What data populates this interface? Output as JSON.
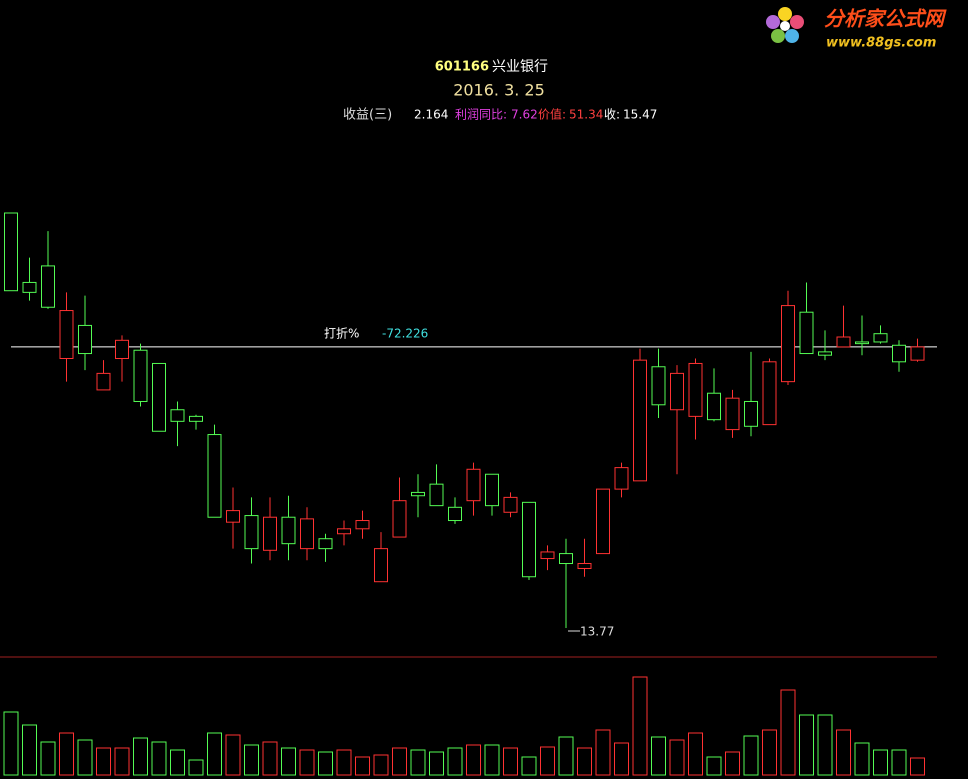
{
  "chart_data": {
    "type": "candlestick",
    "code": "601166",
    "name": "兴业银行",
    "date": "2016. 3. 25",
    "logo": {
      "title": "分析家公式网",
      "url": "www.88gs.com"
    },
    "info": {
      "eps_label": "收益(三)",
      "eps": 2.164,
      "profit_label": "利润同比:",
      "profit": 7.62,
      "value_label": "价值:",
      "value": 51.34,
      "close_label": "收:"
    },
    "discount": {
      "label": "打折%",
      "value": -72.226
    },
    "up_color": "#ff3232",
    "down_color": "#54fc54",
    "open": [
      16.28,
      15.86,
      15.96,
      15.4,
      15.6,
      15.21,
      15.4,
      15.45,
      15.37,
      15.09,
      15.05,
      14.94,
      14.41,
      14.45,
      14.24,
      14.44,
      14.25,
      14.31,
      14.34,
      14.37,
      14.05,
      14.32,
      14.59,
      14.64,
      14.5,
      14.54,
      14.7,
      14.47,
      14.53,
      14.19,
      14.22,
      14.13,
      14.22,
      14.61,
      14.66,
      15.35,
      15.09,
      15.05,
      15.19,
      14.97,
      15.14,
      15.0,
      15.26,
      15.68,
      15.44,
      15.47,
      15.5,
      15.55,
      15.48,
      15.39
    ],
    "high": [
      16.28,
      16.01,
      16.17,
      15.8,
      15.78,
      15.39,
      15.54,
      15.49,
      15.37,
      15.14,
      15.06,
      15.0,
      14.62,
      14.56,
      14.56,
      14.57,
      14.5,
      14.34,
      14.42,
      14.48,
      14.35,
      14.68,
      14.7,
      14.76,
      14.56,
      14.77,
      14.7,
      14.59,
      14.53,
      14.27,
      14.31,
      14.31,
      14.61,
      14.77,
      15.46,
      15.46,
      15.36,
      15.4,
      15.34,
      15.21,
      15.44,
      15.4,
      15.81,
      15.86,
      15.57,
      15.72,
      15.66,
      15.6,
      15.51,
      15.52
    ],
    "low": [
      15.81,
      15.75,
      15.7,
      15.26,
      15.33,
      15.21,
      15.26,
      15.11,
      14.96,
      14.87,
      14.97,
      14.44,
      14.25,
      14.16,
      14.18,
      14.18,
      14.18,
      14.17,
      14.27,
      14.31,
      14.05,
      14.32,
      14.44,
      14.51,
      14.4,
      14.45,
      14.45,
      14.44,
      14.06,
      14.12,
      13.77,
      14.08,
      14.22,
      14.56,
      14.66,
      15.04,
      14.7,
      14.91,
      15.02,
      14.92,
      14.93,
      15.0,
      15.24,
      15.43,
      15.39,
      15.47,
      15.42,
      15.49,
      15.32,
      15.38
    ],
    "close": [
      15.81,
      15.8,
      15.71,
      15.69,
      15.43,
      15.31,
      15.51,
      15.14,
      14.96,
      15.02,
      15.02,
      14.44,
      14.48,
      14.25,
      14.44,
      14.28,
      14.43,
      14.25,
      14.37,
      14.42,
      14.25,
      14.54,
      14.57,
      14.51,
      14.42,
      14.73,
      14.51,
      14.56,
      14.08,
      14.23,
      14.16,
      14.16,
      14.61,
      14.74,
      15.39,
      15.12,
      15.31,
      15.37,
      15.03,
      15.16,
      14.99,
      15.38,
      15.72,
      15.43,
      15.42,
      15.53,
      15.49,
      15.5,
      15.38,
      15.47
    ],
    "volume": [
      63,
      50,
      33,
      42,
      35,
      27,
      27,
      37,
      33,
      25,
      15,
      42,
      40,
      30,
      33,
      27,
      25,
      23,
      25,
      18,
      20,
      27,
      25,
      23,
      27,
      30,
      30,
      27,
      18,
      28,
      38,
      27,
      45,
      32,
      98,
      38,
      35,
      42,
      18,
      23,
      39,
      45,
      85,
      60,
      60,
      45,
      32,
      25,
      25,
      17
    ]
  }
}
